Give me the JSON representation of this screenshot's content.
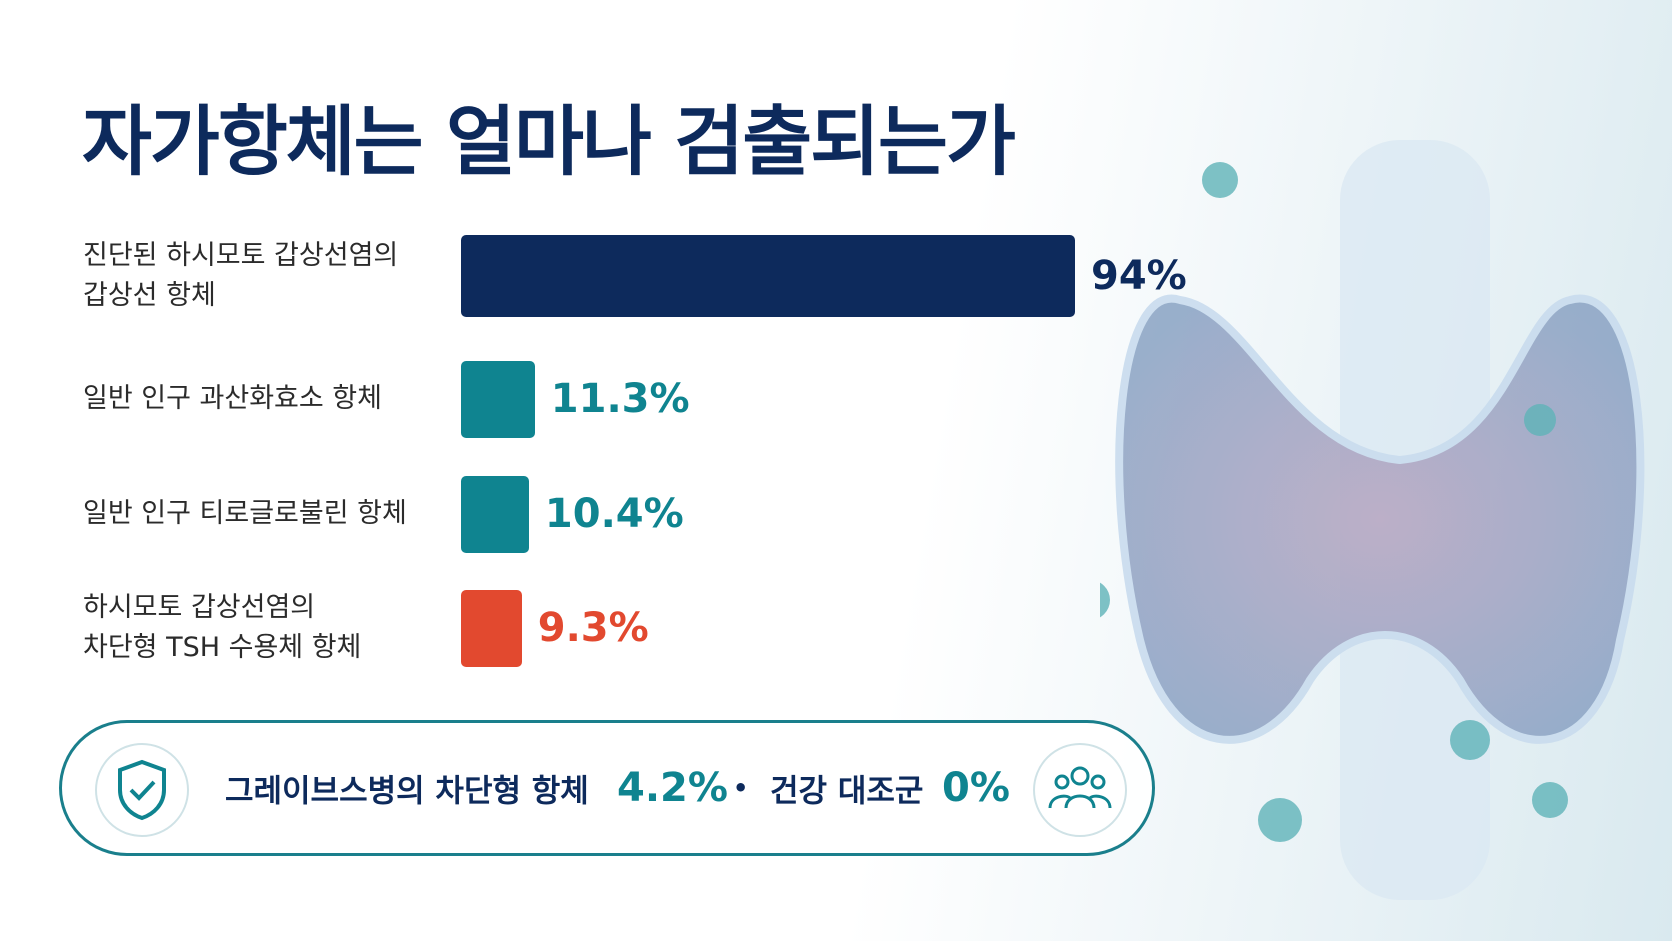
{
  "chart_data": {
    "type": "bar",
    "orientation": "horizontal",
    "title": "자가항체는 얼마나 검출되는가",
    "categories": [
      "진단된 하시모토 갑상선염의\n갑상선 항체",
      "일반 인구 과산화효소 항체",
      "일반 인구 티로글로불린 항체",
      "하시모토 갑상선염의\n차단형 TSH 수용체 항체"
    ],
    "values": [
      94,
      11.3,
      10.4,
      9.3
    ],
    "value_labels": [
      "94%",
      "11.3%",
      "10.4%",
      "9.3%"
    ],
    "colors": [
      "#0d2a5c",
      "#0f8490",
      "#0f8490",
      "#e2492f"
    ]
  },
  "footer": {
    "items": [
      {
        "label": "그레이브스병의 차단형 항체",
        "value": "4.2%"
      },
      {
        "label": "건강 대조군",
        "value": "0%"
      }
    ],
    "separator": "•"
  }
}
